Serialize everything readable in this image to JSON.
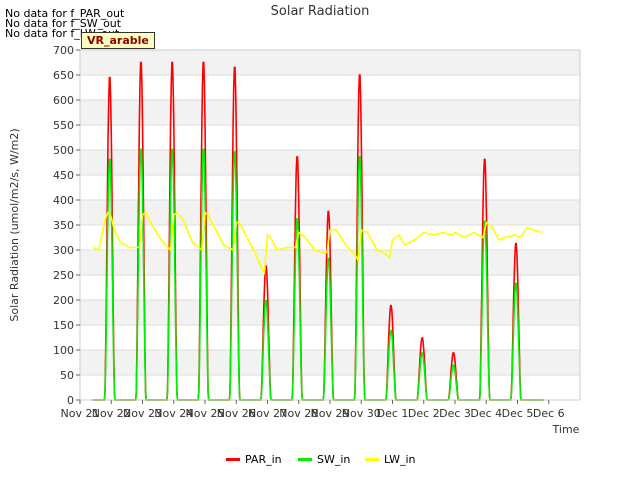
{
  "notes": [
    "No data for f_PAR_out",
    "No data for f_SW_out",
    "No data for f_LW_out"
  ],
  "site_label": "VR_arable",
  "chart_data": {
    "type": "line",
    "title": "Solar Radiation",
    "xlabel": "Time",
    "ylabel": "Solar Radiation (umol/m2/s, W/m2)",
    "ylim": [
      0,
      700
    ],
    "yticks": [
      0,
      50,
      100,
      150,
      200,
      250,
      300,
      350,
      400,
      450,
      500,
      550,
      600,
      650,
      700
    ],
    "xlim": [
      0,
      16
    ],
    "xticks": [
      {
        "x": 0,
        "label": "Nov 21"
      },
      {
        "x": 1,
        "label": "Nov 22"
      },
      {
        "x": 2,
        "label": "Nov 23"
      },
      {
        "x": 3,
        "label": "Nov 24"
      },
      {
        "x": 4,
        "label": "Nov 25"
      },
      {
        "x": 5,
        "label": "Nov 26"
      },
      {
        "x": 6,
        "label": "Nov 27"
      },
      {
        "x": 7,
        "label": "Nov 28"
      },
      {
        "x": 8,
        "label": "Nov 29"
      },
      {
        "x": 9,
        "label": "Nov 30"
      },
      {
        "x": 10,
        "label": "Dec 1"
      },
      {
        "x": 11,
        "label": "Dec 2"
      },
      {
        "x": 12,
        "label": "Dec 3"
      },
      {
        "x": 13,
        "label": "Dec 4"
      },
      {
        "x": 14,
        "label": "Dec 5"
      },
      {
        "x": 15,
        "label": "Dec 6"
      }
    ],
    "grid": true,
    "legend_position": "bottom-center",
    "series": [
      {
        "name": "PAR_in",
        "color": "#ff0000",
        "peaks": [
          650,
          680,
          680,
          680,
          670,
          270,
          490,
          380,
          655,
          190,
          125,
          95,
          485,
          315
        ]
      },
      {
        "name": "SW_in",
        "color": "#00ee00",
        "peaks": [
          485,
          505,
          505,
          505,
          500,
          200,
          365,
          285,
          490,
          140,
          95,
          70,
          360,
          235
        ]
      },
      {
        "name": "LW_in",
        "color": "#ffff00",
        "x": [
          0.4,
          0.6,
          0.8,
          0.9,
          1.0,
          1.1,
          1.3,
          1.6,
          1.9,
          2.0,
          2.1,
          2.3,
          2.6,
          2.9,
          3.0,
          3.1,
          3.3,
          3.6,
          3.9,
          4.0,
          4.1,
          4.3,
          4.6,
          4.9,
          5.0,
          5.1,
          5.3,
          5.6,
          5.8,
          5.9,
          6.0,
          6.1,
          6.3,
          6.6,
          6.9,
          7.0,
          7.2,
          7.5,
          7.8,
          7.9,
          8.0,
          8.2,
          8.5,
          8.8,
          8.9,
          9.0,
          9.2,
          9.5,
          9.7,
          9.9,
          10.0,
          10.2,
          10.4,
          10.7,
          11.0,
          11.3,
          11.6,
          11.9,
          12.0,
          12.3,
          12.6,
          12.9,
          13.0,
          13.2,
          13.4,
          13.6,
          13.9,
          14.1,
          14.3,
          14.5,
          14.8
        ],
        "values": [
          305,
          300,
          360,
          375,
          365,
          340,
          315,
          305,
          305,
          370,
          375,
          350,
          320,
          300,
          370,
          375,
          360,
          315,
          300,
          375,
          370,
          345,
          310,
          300,
          355,
          355,
          330,
          295,
          265,
          255,
          330,
          325,
          300,
          305,
          305,
          335,
          325,
          300,
          295,
          295,
          340,
          340,
          310,
          290,
          280,
          340,
          335,
          300,
          295,
          285,
          320,
          330,
          310,
          320,
          335,
          330,
          335,
          330,
          335,
          325,
          335,
          325,
          355,
          345,
          320,
          325,
          330,
          325,
          345,
          340,
          335
        ]
      }
    ]
  }
}
